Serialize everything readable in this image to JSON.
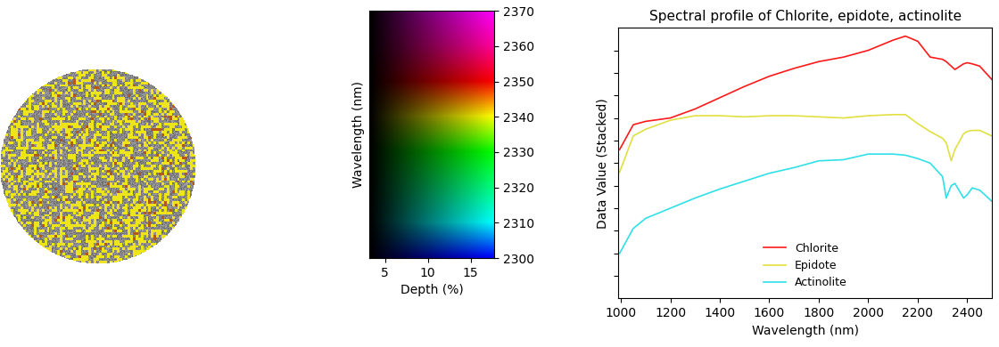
{
  "chart_data": [
    {
      "type": "image"
    },
    {
      "type": "heatmap",
      "xlabel": "Depth (%)",
      "ylabel": "Wavelength (nm)",
      "xlim": [
        3.2,
        17.8
      ],
      "xticks": [
        5,
        10,
        15
      ],
      "ylim": [
        2300,
        2370
      ],
      "yticks": [
        2300,
        2310,
        2320,
        2330,
        2340,
        2350,
        2360,
        2370
      ]
    },
    {
      "type": "line",
      "title": "Spectral profile of Chlorite, epidote, actinolite",
      "xlabel": "Wavelength (nm)",
      "ylabel": "Data Value (Stacked)",
      "xlim": [
        990,
        2500
      ],
      "xticks": [
        1000,
        1200,
        1400,
        1600,
        1800,
        2000,
        2200,
        2400
      ],
      "ylim": [
        -0.2,
        1.0
      ],
      "yticks": [
        -0.1,
        0.0,
        0.1,
        0.2,
        0.3,
        0.4,
        0.5,
        0.6,
        0.7,
        0.8,
        0.9
      ],
      "tick_labels": "x",
      "legend": "lower center",
      "x": [
        995,
        1050,
        1100,
        1200,
        1300,
        1400,
        1500,
        1600,
        1700,
        1800,
        1900,
        2000,
        2100,
        2150,
        2200,
        2250,
        2300,
        2315,
        2335,
        2350,
        2385,
        2400,
        2420,
        2450,
        2500
      ],
      "series": [
        {
          "name": "Chlorite",
          "color": "#ff1a1a",
          "values": [
            0.46,
            0.57,
            0.585,
            0.6,
            0.64,
            0.69,
            0.74,
            0.785,
            0.82,
            0.85,
            0.87,
            0.9,
            0.945,
            0.963,
            0.94,
            0.87,
            0.86,
            0.85,
            0.83,
            0.815,
            0.84,
            0.845,
            0.84,
            0.83,
            0.77
          ]
        },
        {
          "name": "Epidote",
          "color": "#e0e040",
          "values": [
            0.36,
            0.52,
            0.55,
            0.59,
            0.61,
            0.61,
            0.605,
            0.61,
            0.61,
            0.605,
            0.6,
            0.61,
            0.615,
            0.615,
            0.575,
            0.54,
            0.51,
            0.49,
            0.41,
            0.46,
            0.53,
            0.54,
            0.545,
            0.545,
            0.52
          ]
        },
        {
          "name": "Actinolite",
          "color": "#30e0e8",
          "values": [
            0.0,
            0.11,
            0.155,
            0.2,
            0.245,
            0.285,
            0.32,
            0.355,
            0.38,
            0.41,
            0.415,
            0.44,
            0.44,
            0.435,
            0.42,
            0.4,
            0.34,
            0.245,
            0.3,
            0.31,
            0.245,
            0.26,
            0.29,
            0.28,
            0.23
          ]
        }
      ]
    }
  ]
}
